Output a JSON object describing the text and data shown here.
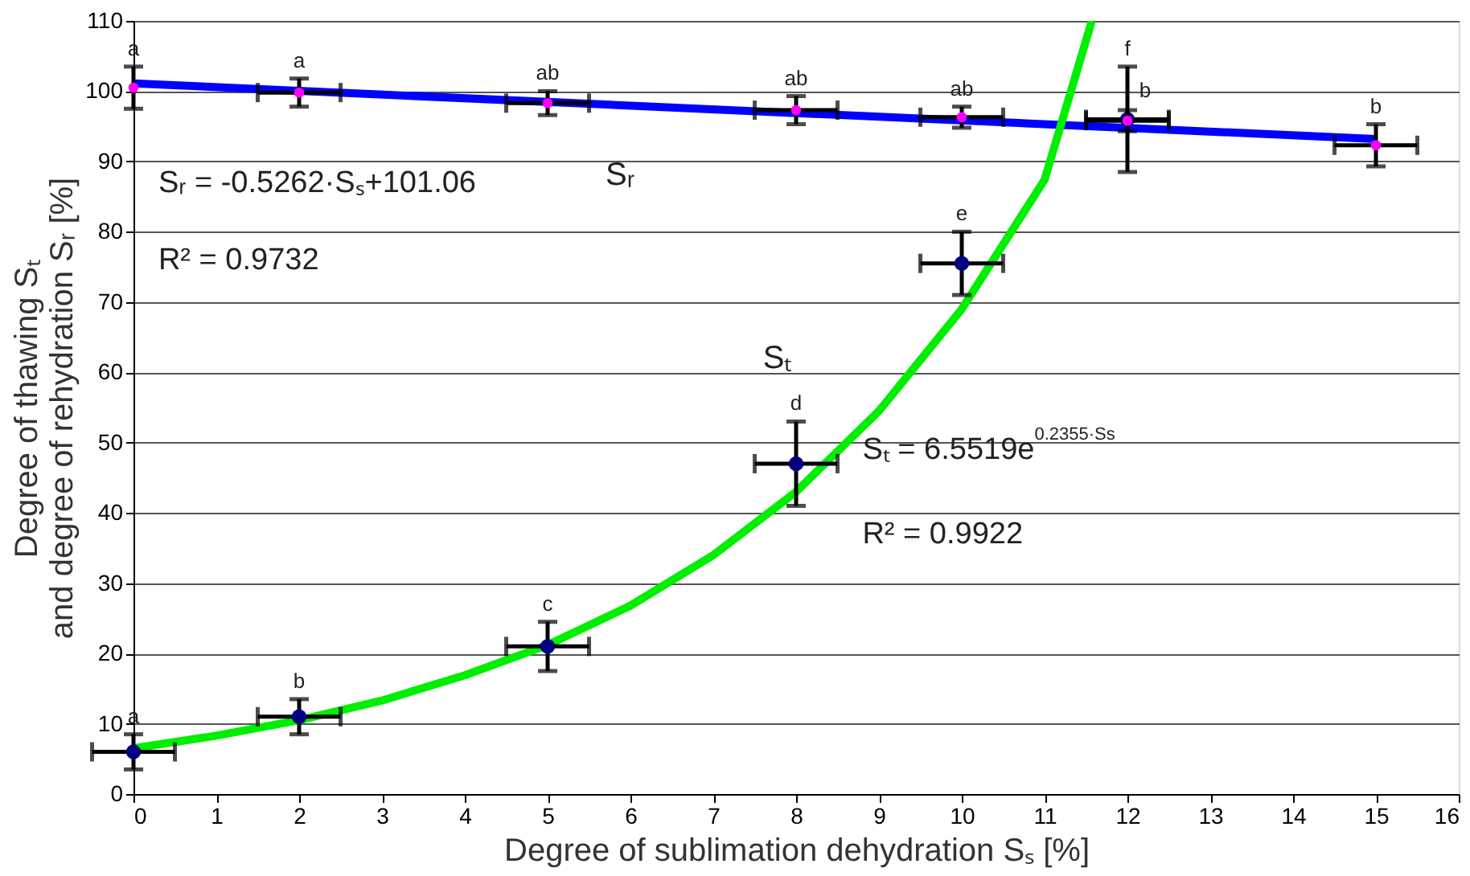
{
  "chart_data": {
    "type": "scatter",
    "xlabel": "Degree of sublimation dehydration Sₛ [%]",
    "ylabel": "Degree of thawing Sₜ\nand degree of rehydration Sᵣ [%]",
    "xlim": [
      0,
      16
    ],
    "xticks": [
      0,
      1,
      2,
      3,
      4,
      5,
      6,
      7,
      8,
      9,
      10,
      11,
      12,
      13,
      14,
      15,
      16
    ],
    "ylim": [
      0,
      110
    ],
    "yticks": [
      0,
      10,
      20,
      30,
      40,
      50,
      60,
      70,
      80,
      90,
      100,
      110
    ],
    "grid": "y",
    "series": [
      {
        "type": "line",
        "color": "#0000ff",
        "x": [
          0,
          15
        ],
        "values": [
          101.1,
          93.2
        ]
      },
      {
        "type": "line",
        "color": "#00ee00",
        "x": [
          0,
          1,
          2,
          3,
          4,
          5,
          6,
          7,
          8,
          9,
          10,
          11,
          11.57
        ],
        "values": [
          6.5,
          8.3,
          10.5,
          13.3,
          16.9,
          21.2,
          26.8,
          34,
          43,
          54.5,
          69,
          87.4,
          110
        ]
      },
      {
        "color": "#ff00ff",
        "marker": "circle",
        "x": [
          0,
          2,
          5,
          8,
          10,
          12,
          15
        ],
        "values": [
          100.5,
          99.8,
          98.3,
          97.3,
          96.3,
          95.8,
          92.3
        ],
        "errors": [
          3,
          2,
          1.7,
          2,
          1.5,
          1.5,
          3
        ],
        "xerrors": [
          null,
          0.5,
          0.5,
          0.5,
          0.5,
          0.5,
          0.5
        ]
      },
      {
        "color": "#000080",
        "marker": "circle",
        "x": [
          0,
          2,
          5,
          8,
          10,
          12
        ],
        "values": [
          6,
          11,
          21,
          47,
          75.5,
          96
        ],
        "errors": [
          2.5,
          2.5,
          3.5,
          6,
          4.5,
          7.5
        ],
        "xerrors": [
          0.5,
          0.5,
          0.5,
          0.5,
          0.5,
          0.5
        ]
      }
    ],
    "annotations": [
      {
        "text": "a",
        "x": 0,
        "y": 8.5
      },
      {
        "text": "b",
        "x": 2,
        "y": 13.5
      },
      {
        "text": "c",
        "x": 5,
        "y": 24.5
      },
      {
        "text": "d",
        "x": 8,
        "y": 53
      },
      {
        "text": "e",
        "x": 10,
        "y": 80
      },
      {
        "text": "f",
        "x": 12,
        "y": 103.5
      },
      {
        "text": "a",
        "x": 0,
        "y": 103.5
      },
      {
        "text": "a",
        "x": 2,
        "y": 101.8
      },
      {
        "text": "ab",
        "x": 5,
        "y": 100
      },
      {
        "text": "ab",
        "x": 8,
        "y": 99.3
      },
      {
        "text": "ab",
        "x": 10,
        "y": 97.8
      },
      {
        "text": "b",
        "x": 12,
        "y": 97.5
      },
      {
        "text": "b",
        "x": 15,
        "y": 95.3
      },
      "Sᵣ = -0.5262·Sₛ+101.06",
      "R² = 0.9732",
      "Sₜ = 6.5519e$^{0.2355·Ss}$",
      "R² = 0.9922",
      "Sᵣ",
      "Sₜ"
    ]
  }
}
